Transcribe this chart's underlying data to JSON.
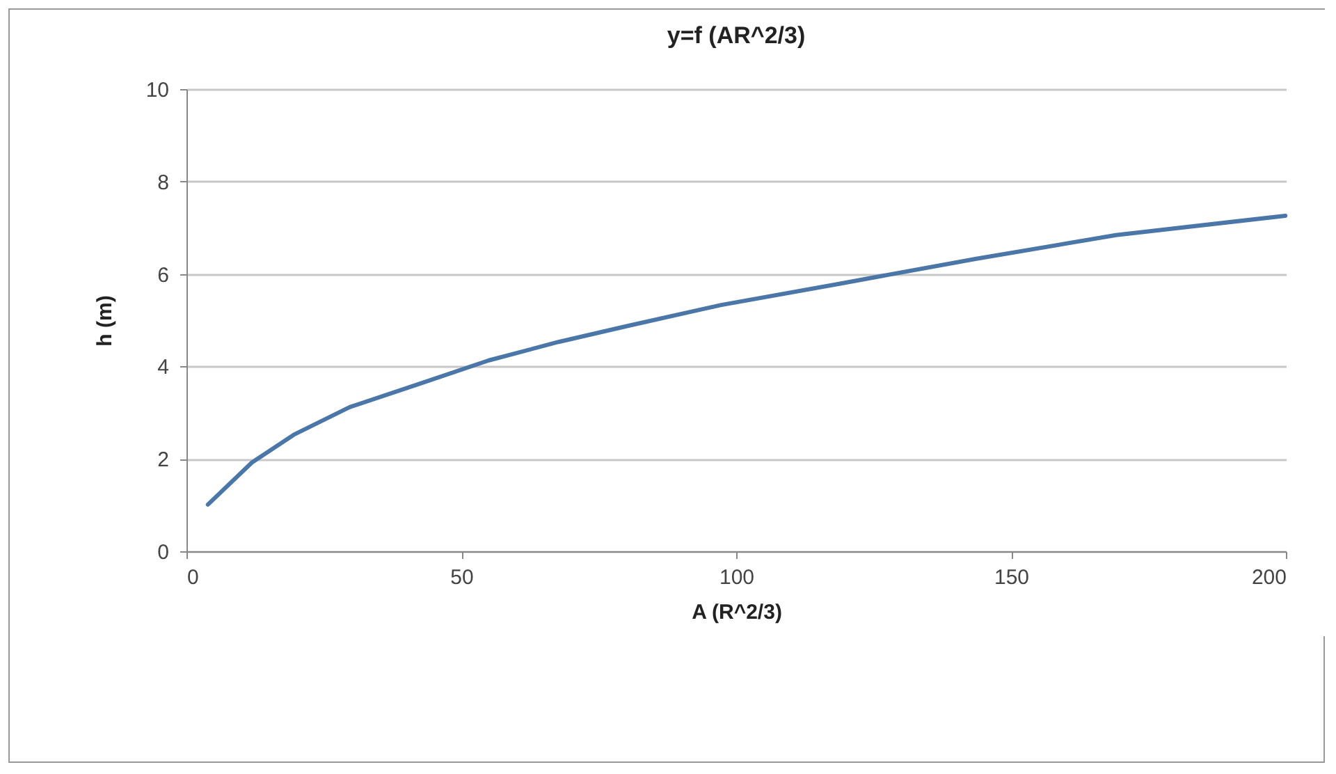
{
  "chart_data": {
    "type": "line",
    "title": "y=f (AR^2/3)",
    "xlabel": "A (R^2/3)",
    "ylabel": "h (m)",
    "x": [
      3.9,
      11.9,
      19.5,
      29.7,
      42.3,
      55,
      67.7,
      80.4,
      97.3,
      118.4,
      143.7,
      169.1,
      199.9
    ],
    "series": [
      {
        "color": "#4a76a8",
        "values": [
          1.01,
          1.92,
          2.52,
          3.12,
          3.62,
          4.13,
          4.53,
          4.88,
          5.33,
          5.78,
          6.33,
          6.84,
          7.26
        ]
      }
    ],
    "xlim": [
      0,
      200
    ],
    "xticks": [
      0,
      50,
      100,
      150,
      200
    ],
    "ylim": [
      0,
      10
    ],
    "yticks": [
      0,
      2,
      4,
      6,
      8,
      10
    ],
    "grid": "y",
    "legend": false,
    "marker": "none",
    "line_style": "solid"
  }
}
